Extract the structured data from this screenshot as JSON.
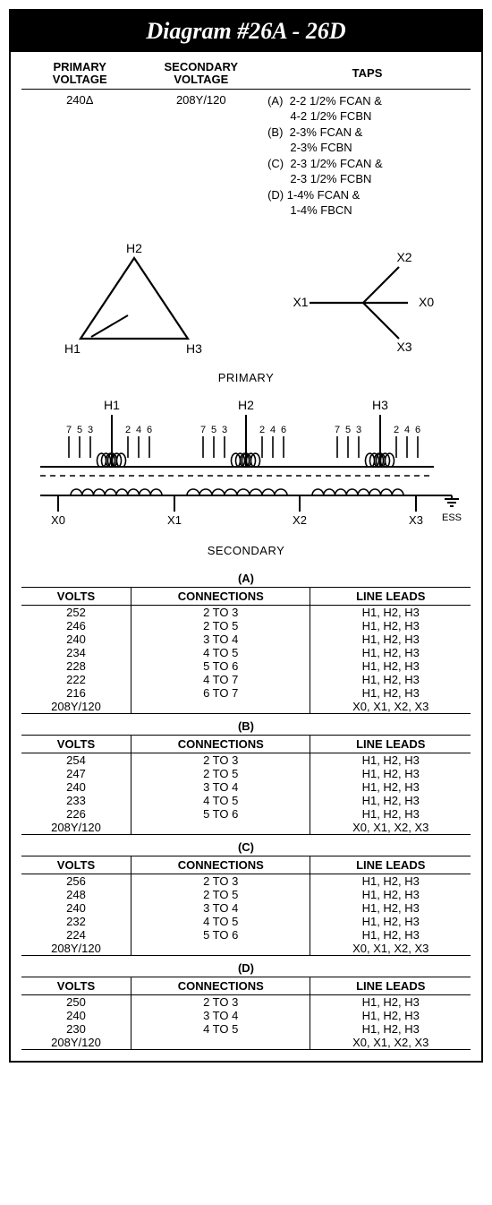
{
  "title": "Diagram #26A - 26D",
  "header": {
    "cols": [
      "PRIMARY VOLTAGE",
      "SECONDARY VOLTAGE",
      "TAPS"
    ],
    "primary": "240Δ",
    "secondary": "208Y/120",
    "taps": [
      "(A)  2-2 1/2% FCAN &",
      "       4-2 1/2% FCBN",
      "(B)  2-3% FCAN &",
      "       2-3% FCBN",
      "(C)  2-3 1/2% FCAN &",
      "       2-3 1/2% FCBN",
      "(D) 1-4% FCAN &",
      "       1-4% FBCN"
    ]
  },
  "delta": {
    "labels": [
      "H1",
      "H2",
      "H3"
    ]
  },
  "wye": {
    "labels": [
      "X0",
      "X1",
      "X2",
      "X3"
    ]
  },
  "primary_label": "PRIMARY",
  "secondary_label": "SECONDARY",
  "winding": {
    "primary_terms": [
      "H1",
      "H2",
      "H3"
    ],
    "tap_nums": [
      "7",
      "5",
      "3",
      "2",
      "4",
      "6"
    ],
    "secondary_terms": [
      "X0",
      "X1",
      "X2",
      "X3"
    ],
    "ess": "ESS"
  },
  "tables": [
    {
      "caption": "(A)",
      "headers": [
        "VOLTS",
        "CONNECTIONS",
        "LINE LEADS"
      ],
      "rows": [
        [
          "252",
          "2 TO 3",
          "H1, H2, H3"
        ],
        [
          "246",
          "2 TO 5",
          "H1, H2, H3"
        ],
        [
          "240",
          "3 TO 4",
          "H1, H2, H3"
        ],
        [
          "234",
          "4 TO 5",
          "H1, H2, H3"
        ],
        [
          "228",
          "5 TO 6",
          "H1, H2, H3"
        ],
        [
          "222",
          "4 TO 7",
          "H1, H2, H3"
        ],
        [
          "216",
          "6 TO 7",
          "H1, H2, H3"
        ],
        [
          "208Y/120",
          "",
          "X0, X1, X2, X3"
        ]
      ]
    },
    {
      "caption": "(B)",
      "headers": [
        "VOLTS",
        "CONNECTIONS",
        "LINE LEADS"
      ],
      "rows": [
        [
          "254",
          "2 TO 3",
          "H1, H2, H3"
        ],
        [
          "247",
          "2 TO 5",
          "H1, H2, H3"
        ],
        [
          "240",
          "3 TO 4",
          "H1, H2, H3"
        ],
        [
          "233",
          "4 TO 5",
          "H1, H2, H3"
        ],
        [
          "226",
          "5 TO 6",
          "H1, H2, H3"
        ],
        [
          "208Y/120",
          "",
          "X0, X1, X2, X3"
        ]
      ]
    },
    {
      "caption": "(C)",
      "headers": [
        "VOLTS",
        "CONNECTIONS",
        "LINE LEADS"
      ],
      "rows": [
        [
          "256",
          "2 TO 3",
          "H1, H2, H3"
        ],
        [
          "248",
          "2 TO 5",
          "H1, H2, H3"
        ],
        [
          "240",
          "3 TO 4",
          "H1, H2, H3"
        ],
        [
          "232",
          "4 TO 5",
          "H1, H2, H3"
        ],
        [
          "224",
          "5 TO 6",
          "H1, H2, H3"
        ],
        [
          "208Y/120",
          "",
          "X0, X1, X2, X3"
        ]
      ]
    },
    {
      "caption": "(D)",
      "headers": [
        "VOLTS",
        "CONNECTIONS",
        "LINE LEADS"
      ],
      "rows": [
        [
          "250",
          "2 TO 3",
          "H1, H2, H3"
        ],
        [
          "240",
          "3 TO 4",
          "H1, H2, H3"
        ],
        [
          "230",
          "4 TO 5",
          "H1, H2, H3"
        ],
        [
          "208Y/120",
          "",
          "X0, X1, X2, X3"
        ]
      ]
    }
  ],
  "style": {
    "stroke": "#000",
    "stroke_width": 2,
    "font": "Arial",
    "label_fontsize": 13
  }
}
